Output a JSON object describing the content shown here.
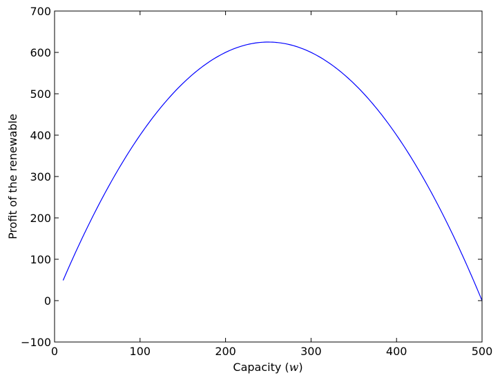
{
  "chart_data": {
    "type": "line",
    "title": "",
    "xlabel": "Capacity",
    "xlabel_var": "w",
    "ylabel": "Profit of the renewable",
    "xlim": [
      0,
      500
    ],
    "ylim": [
      -100,
      700
    ],
    "xticks": [
      0,
      100,
      200,
      300,
      400,
      500
    ],
    "yticks": [
      -100,
      0,
      100,
      200,
      300,
      400,
      500,
      600,
      700
    ],
    "xtick_labels": [
      "0",
      "100",
      "200",
      "300",
      "400",
      "500"
    ],
    "ytick_labels": [
      "−100",
      "0",
      "100",
      "200",
      "300",
      "400",
      "500",
      "600",
      "700"
    ],
    "grid": false,
    "series": [
      {
        "name": "profit",
        "color": "#0000ff",
        "x": [
          10,
          25,
          50,
          75,
          100,
          125,
          150,
          175,
          200,
          225,
          250,
          275,
          300,
          325,
          350,
          375,
          400,
          425,
          450,
          475,
          500
        ],
        "y": [
          49,
          144,
          275,
          394,
          400,
          469,
          525,
          569,
          600,
          619,
          625,
          619,
          600,
          569,
          525,
          469,
          400,
          319,
          225,
          119,
          0
        ]
      }
    ]
  }
}
